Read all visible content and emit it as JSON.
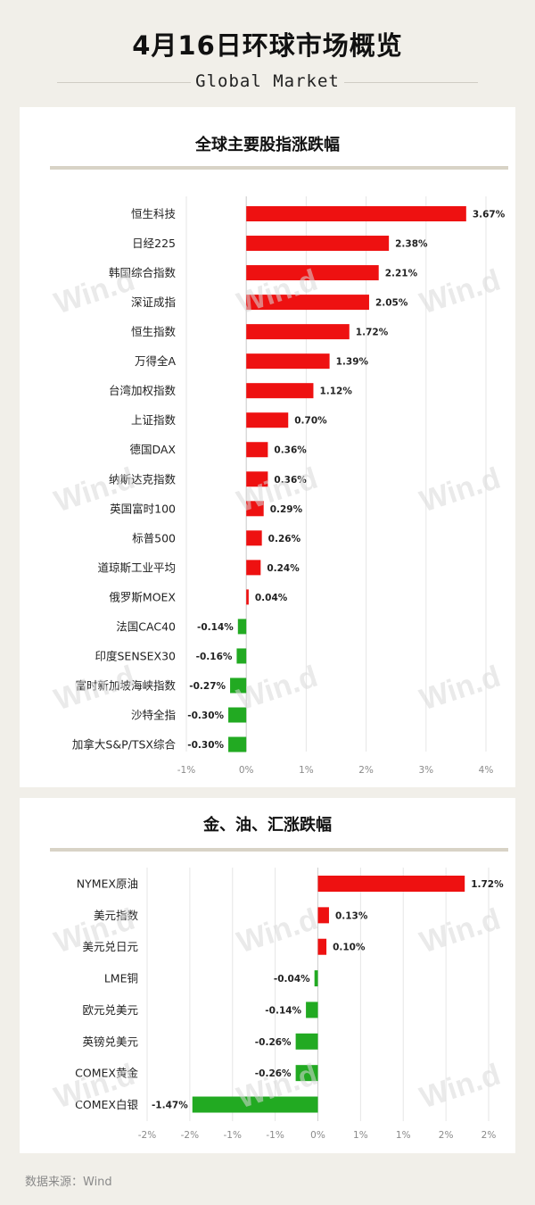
{
  "header": {
    "title": "4月16日环球市场概览",
    "subtitle": "Global Market"
  },
  "footer": {
    "source": "数据来源：Wind"
  },
  "watermark": "Win.d",
  "colors": {
    "positive": "#ee1111",
    "negative": "#22aa22",
    "grid": "#e6e6e6",
    "axis": "#8a8a8a"
  },
  "chart_data": [
    {
      "type": "bar",
      "orientation": "horizontal",
      "title": "全球主要股指涨跌幅",
      "categories": [
        "恒生科技",
        "日经225",
        "韩国综合指数",
        "深证成指",
        "恒生指数",
        "万得全A",
        "台湾加权指数",
        "上证指数",
        "德国DAX",
        "纳斯达克指数",
        "英国富时100",
        "标普500",
        "道琼斯工业平均",
        "俄罗斯MOEX",
        "法国CAC40",
        "印度SENSEX30",
        "富时新加坡海峡指数",
        "沙特全指",
        "加拿大S&P/TSX综合"
      ],
      "values": [
        3.67,
        2.38,
        2.21,
        2.05,
        1.72,
        1.39,
        1.12,
        0.7,
        0.36,
        0.36,
        0.29,
        0.26,
        0.24,
        0.04,
        -0.14,
        -0.16,
        -0.27,
        -0.3,
        -0.3
      ],
      "labels": [
        "3.67%",
        "2.38%",
        "2.21%",
        "2.05%",
        "1.72%",
        "1.39%",
        "1.12%",
        "0.70%",
        "0.36%",
        "0.36%",
        "0.29%",
        "0.26%",
        "0.24%",
        "0.04%",
        "-0.14%",
        "-0.16%",
        "-0.27%",
        "-0.30%",
        "-0.30%"
      ],
      "xlim": [
        -1,
        4
      ],
      "xticks": [
        -1,
        0,
        1,
        2,
        3,
        4
      ],
      "xtick_labels": [
        "-1%",
        "0%",
        "1%",
        "2%",
        "3%",
        "4%"
      ],
      "grid": true
    },
    {
      "type": "bar",
      "orientation": "horizontal",
      "title": "金、油、汇涨跌幅",
      "categories": [
        "NYMEX原油",
        "美元指数",
        "美元兑日元",
        "LME铜",
        "欧元兑美元",
        "英镑兑美元",
        "COMEX黄金",
        "COMEX白银"
      ],
      "values": [
        1.72,
        0.13,
        0.1,
        -0.04,
        -0.14,
        -0.26,
        -0.26,
        -1.47
      ],
      "labels": [
        "1.72%",
        "0.13%",
        "0.10%",
        "-0.04%",
        "-0.14%",
        "-0.26%",
        "-0.26%",
        "-1.47%"
      ],
      "xlim": [
        -2,
        2
      ],
      "xticks": [
        -2,
        -1.5,
        -1,
        -0.5,
        0,
        0.5,
        1,
        1.5,
        2
      ],
      "xtick_labels": [
        "-2%",
        "-2%",
        "-1%",
        "-1%",
        "0%",
        "1%",
        "1%",
        "2%",
        "2%"
      ],
      "grid": true
    }
  ]
}
